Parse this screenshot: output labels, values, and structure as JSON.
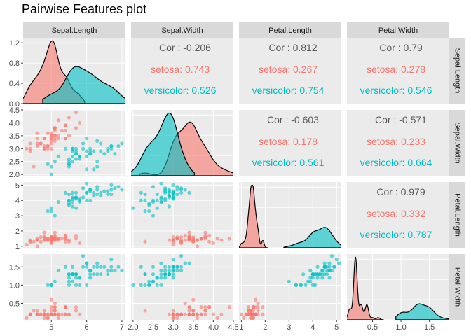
{
  "title": "Pairwise Features plot",
  "colors": {
    "setosa": "#F8766D",
    "versicolor": "#00BFC4",
    "panel_bg": "#EBEBEB",
    "strip_bg": "#D9D9D9",
    "cor_total": "#595959"
  },
  "chart_data": {
    "type": "scatter",
    "variables": [
      "Sepal.Length",
      "Sepal.Width",
      "Petal.Length",
      "Petal.Width"
    ],
    "groups": [
      "setosa",
      "versicolor"
    ],
    "axes": {
      "Sepal.Length": {
        "ticks": [
          5,
          6,
          7
        ],
        "range": [
          4.2,
          7.1
        ]
      },
      "Sepal.Width": {
        "ticks": [
          2.0,
          2.5,
          3.0,
          3.5,
          4.0,
          4.5
        ],
        "range": [
          1.95,
          4.5
        ]
      },
      "Petal.Length": {
        "ticks": [
          1,
          2,
          3,
          4,
          5
        ],
        "range": [
          0.9,
          5.2
        ]
      },
      "Petal.Width": {
        "ticks": [
          0.5,
          1.0,
          1.5
        ],
        "range": [
          0.05,
          1.85
        ]
      }
    },
    "density_axis": {
      "ticks": [
        0.0,
        0.4,
        0.8,
        1.2
      ],
      "range": [
        0,
        1.3
      ]
    },
    "correlations": [
      {
        "row": "Sepal.Length",
        "col": "Sepal.Width",
        "total": "Cor : -0.206",
        "setosa": "setosa: 0.743",
        "versicolor": "versicolor: 0.526"
      },
      {
        "row": "Sepal.Length",
        "col": "Petal.Length",
        "total": "Cor : 0.812",
        "setosa": "setosa: 0.267",
        "versicolor": "versicolor: 0.754"
      },
      {
        "row": "Sepal.Length",
        "col": "Petal.Width",
        "total": "Cor : 0.79",
        "setosa": "setosa: 0.278",
        "versicolor": "versicolor: 0.546"
      },
      {
        "row": "Sepal.Width",
        "col": "Petal.Length",
        "total": "Cor : -0.603",
        "setosa": "setosa: 0.178",
        "versicolor": "versicolor: 0.561"
      },
      {
        "row": "Sepal.Width",
        "col": "Petal.Width",
        "total": "Cor : -0.571",
        "setosa": "setosa: 0.233",
        "versicolor": "versicolor: 0.664"
      },
      {
        "row": "Petal.Length",
        "col": "Petal.Width",
        "total": "Cor : 0.979",
        "setosa": "setosa: 0.332",
        "versicolor": "versicolor: 0.787"
      }
    ],
    "data": {
      "setosa": [
        [
          5.1,
          3.5,
          1.4,
          0.2
        ],
        [
          4.9,
          3.0,
          1.4,
          0.2
        ],
        [
          4.7,
          3.2,
          1.3,
          0.2
        ],
        [
          4.6,
          3.1,
          1.5,
          0.2
        ],
        [
          5.0,
          3.6,
          1.4,
          0.2
        ],
        [
          5.4,
          3.9,
          1.7,
          0.4
        ],
        [
          4.6,
          3.4,
          1.4,
          0.3
        ],
        [
          5.0,
          3.4,
          1.5,
          0.2
        ],
        [
          4.4,
          2.9,
          1.4,
          0.2
        ],
        [
          4.9,
          3.1,
          1.5,
          0.1
        ],
        [
          5.4,
          3.7,
          1.5,
          0.2
        ],
        [
          4.8,
          3.4,
          1.6,
          0.2
        ],
        [
          4.8,
          3.0,
          1.4,
          0.1
        ],
        [
          4.3,
          3.0,
          1.1,
          0.1
        ],
        [
          5.8,
          4.0,
          1.2,
          0.2
        ],
        [
          5.7,
          4.4,
          1.5,
          0.4
        ],
        [
          5.4,
          3.9,
          1.3,
          0.4
        ],
        [
          5.1,
          3.5,
          1.4,
          0.3
        ],
        [
          5.7,
          3.8,
          1.7,
          0.3
        ],
        [
          5.1,
          3.8,
          1.5,
          0.3
        ],
        [
          5.4,
          3.4,
          1.7,
          0.2
        ],
        [
          5.1,
          3.7,
          1.5,
          0.4
        ],
        [
          4.6,
          3.6,
          1.0,
          0.2
        ],
        [
          5.1,
          3.3,
          1.7,
          0.5
        ],
        [
          4.8,
          3.4,
          1.9,
          0.2
        ],
        [
          5.0,
          3.0,
          1.6,
          0.2
        ],
        [
          5.0,
          3.4,
          1.6,
          0.4
        ],
        [
          5.2,
          3.5,
          1.5,
          0.2
        ],
        [
          5.2,
          3.4,
          1.4,
          0.2
        ],
        [
          4.7,
          3.2,
          1.6,
          0.2
        ],
        [
          4.8,
          3.1,
          1.6,
          0.2
        ],
        [
          5.4,
          3.4,
          1.5,
          0.4
        ],
        [
          5.2,
          4.1,
          1.5,
          0.1
        ],
        [
          5.5,
          4.2,
          1.4,
          0.2
        ],
        [
          4.9,
          3.1,
          1.5,
          0.2
        ],
        [
          5.0,
          3.2,
          1.2,
          0.2
        ],
        [
          5.5,
          3.5,
          1.3,
          0.2
        ],
        [
          4.9,
          3.6,
          1.4,
          0.1
        ],
        [
          4.4,
          3.0,
          1.3,
          0.2
        ],
        [
          5.1,
          3.4,
          1.5,
          0.2
        ],
        [
          5.0,
          3.5,
          1.3,
          0.3
        ],
        [
          4.5,
          2.3,
          1.3,
          0.3
        ],
        [
          4.4,
          3.2,
          1.3,
          0.2
        ],
        [
          5.0,
          3.5,
          1.6,
          0.6
        ],
        [
          5.1,
          3.8,
          1.9,
          0.4
        ],
        [
          4.8,
          3.0,
          1.4,
          0.3
        ],
        [
          5.1,
          3.8,
          1.6,
          0.2
        ],
        [
          4.6,
          3.2,
          1.4,
          0.2
        ],
        [
          5.3,
          3.7,
          1.5,
          0.2
        ],
        [
          5.0,
          3.3,
          1.4,
          0.2
        ]
      ],
      "versicolor": [
        [
          7.0,
          3.2,
          4.7,
          1.4
        ],
        [
          6.4,
          3.2,
          4.5,
          1.5
        ],
        [
          6.9,
          3.1,
          4.9,
          1.5
        ],
        [
          5.5,
          2.3,
          4.0,
          1.3
        ],
        [
          6.5,
          2.8,
          4.6,
          1.5
        ],
        [
          5.7,
          2.8,
          4.5,
          1.3
        ],
        [
          6.3,
          3.3,
          4.7,
          1.6
        ],
        [
          4.9,
          2.4,
          3.3,
          1.0
        ],
        [
          6.6,
          2.9,
          4.6,
          1.3
        ],
        [
          5.2,
          2.7,
          3.9,
          1.4
        ],
        [
          5.0,
          2.0,
          3.5,
          1.0
        ],
        [
          5.9,
          3.0,
          4.2,
          1.5
        ],
        [
          6.0,
          2.2,
          4.0,
          1.0
        ],
        [
          6.1,
          2.9,
          4.7,
          1.4
        ],
        [
          5.6,
          2.9,
          3.6,
          1.3
        ],
        [
          6.7,
          3.1,
          4.4,
          1.4
        ],
        [
          5.6,
          3.0,
          4.5,
          1.5
        ],
        [
          5.8,
          2.7,
          4.1,
          1.0
        ],
        [
          6.2,
          2.2,
          4.5,
          1.5
        ],
        [
          5.6,
          2.5,
          3.9,
          1.1
        ],
        [
          5.9,
          3.2,
          4.8,
          1.8
        ],
        [
          6.1,
          2.8,
          4.0,
          1.3
        ],
        [
          6.3,
          2.5,
          4.9,
          1.5
        ],
        [
          6.1,
          2.8,
          4.7,
          1.2
        ],
        [
          6.4,
          2.9,
          4.3,
          1.3
        ],
        [
          6.6,
          3.0,
          4.4,
          1.4
        ],
        [
          6.8,
          2.8,
          4.8,
          1.4
        ],
        [
          6.7,
          3.0,
          5.0,
          1.7
        ],
        [
          6.0,
          2.9,
          4.5,
          1.5
        ],
        [
          5.7,
          2.6,
          3.5,
          1.0
        ],
        [
          5.5,
          2.4,
          3.8,
          1.1
        ],
        [
          5.5,
          2.4,
          3.7,
          1.0
        ],
        [
          5.8,
          2.7,
          3.9,
          1.2
        ],
        [
          6.0,
          2.7,
          5.1,
          1.6
        ],
        [
          5.4,
          3.0,
          4.5,
          1.5
        ],
        [
          6.0,
          3.4,
          4.5,
          1.6
        ],
        [
          6.7,
          3.1,
          4.7,
          1.5
        ],
        [
          6.3,
          2.3,
          4.4,
          1.3
        ],
        [
          5.6,
          3.0,
          4.1,
          1.3
        ],
        [
          5.5,
          2.5,
          4.0,
          1.3
        ],
        [
          5.5,
          2.6,
          4.4,
          1.2
        ],
        [
          6.1,
          3.0,
          4.6,
          1.4
        ],
        [
          5.8,
          2.6,
          4.0,
          1.2
        ],
        [
          5.0,
          2.3,
          3.3,
          1.0
        ],
        [
          5.6,
          2.7,
          4.2,
          1.3
        ],
        [
          5.7,
          3.0,
          4.2,
          1.2
        ],
        [
          5.7,
          2.9,
          4.2,
          1.3
        ],
        [
          6.2,
          2.9,
          4.3,
          1.3
        ],
        [
          5.1,
          2.5,
          3.0,
          1.1
        ],
        [
          5.7,
          2.8,
          4.1,
          1.3
        ]
      ]
    }
  }
}
